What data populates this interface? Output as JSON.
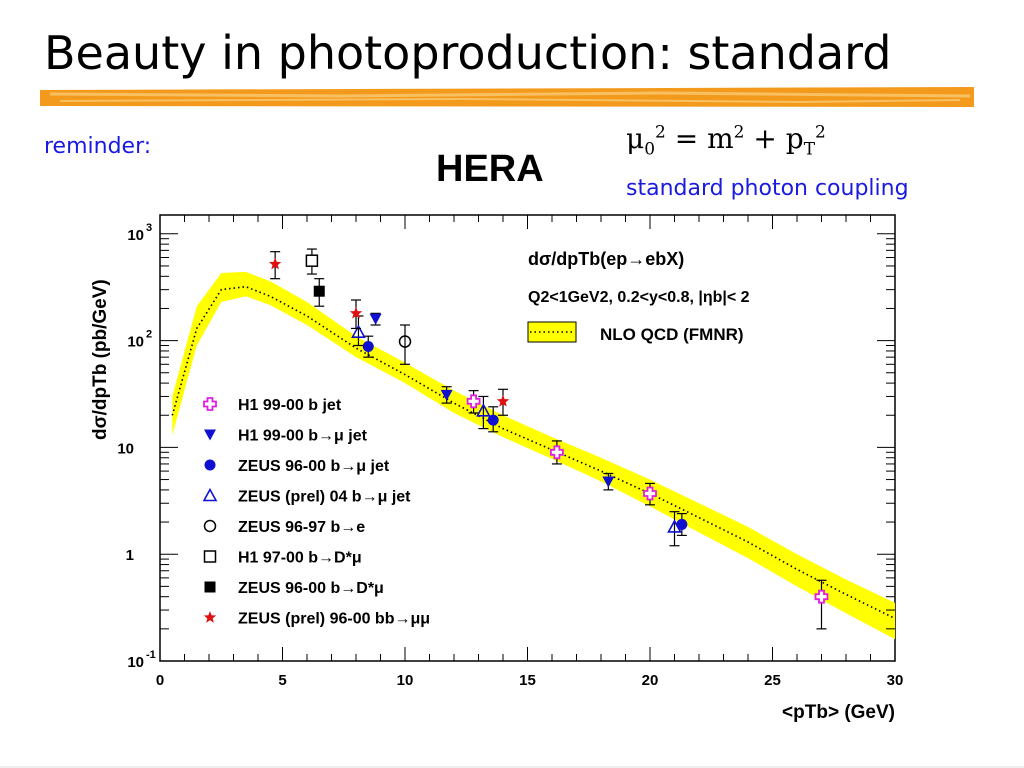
{
  "slide": {
    "title": "Beauty in photoproduction: standard",
    "reminder": "reminder:",
    "hera": "HERA",
    "scale_formula": "μ0² = m² + pT²",
    "coupling": "standard photon coupling"
  },
  "colors": {
    "title_bar": "#f39a1c",
    "note_text": "#1a1ae0",
    "band_fill": "#ffff00",
    "magenta": "#e020e0",
    "blue": "#1010d0",
    "red": "#e01010",
    "black": "#000000"
  },
  "chart_data": {
    "type": "scatter",
    "title": "dσ/dpTb(ep→ebX)",
    "cuts": "Q2<1GeV2,  0.2<y<0.8,  |ηb|< 2",
    "xlabel": "<pTb>  (GeV)",
    "ylabel": "dσ/dpTb  (pb/GeV)",
    "xlim": [
      0,
      30
    ],
    "ylim": [
      0.1,
      1500
    ],
    "y_scale": "log",
    "x_ticks": [
      "0",
      "5",
      "10",
      "15",
      "20",
      "25",
      "30"
    ],
    "y_ticks": [
      {
        "value": 1000,
        "label": "10 3"
      },
      {
        "value": 100,
        "label": "10 2"
      },
      {
        "value": 10,
        "label": "10"
      },
      {
        "value": 1,
        "label": "1"
      },
      {
        "value": 0.1,
        "label": "10 -1"
      }
    ],
    "legend_position": "left-middle",
    "band": {
      "name": "NLO QCD (FMNR)",
      "color": "#ffff00",
      "x": [
        0.5,
        1.5,
        2.5,
        3.5,
        4.5,
        6,
        8,
        10,
        12,
        14,
        16,
        18,
        20,
        22,
        24,
        26,
        28,
        30
      ],
      "central": [
        20,
        130,
        300,
        320,
        260,
        170,
        85,
        48,
        26,
        15,
        9.5,
        6.0,
        3.7,
        2.2,
        1.3,
        0.72,
        0.42,
        0.25
      ],
      "low": [
        13,
        90,
        230,
        260,
        215,
        140,
        70,
        40,
        21,
        12.5,
        7.8,
        4.8,
        2.8,
        1.6,
        0.92,
        0.5,
        0.28,
        0.16
      ],
      "high": [
        30,
        210,
        430,
        440,
        360,
        230,
        110,
        62,
        34,
        20,
        12.5,
        8.0,
        5.0,
        3.0,
        1.8,
        1.0,
        0.58,
        0.35
      ]
    },
    "series": [
      {
        "name": "H1 99-00 b jet",
        "marker": "cross",
        "color": "#e020e0",
        "points": [
          [
            12.8,
            27,
            21,
            34
          ],
          [
            16.2,
            9.0,
            7.0,
            11.5
          ],
          [
            20.0,
            3.7,
            2.9,
            4.6
          ],
          [
            27.0,
            0.4,
            0.2,
            0.57
          ]
        ]
      },
      {
        "name": "H1 99-00 b→μ jet",
        "marker": "triangle-down",
        "color": "#1010d0",
        "points": [
          [
            8.8,
            160,
            140,
            180
          ],
          [
            11.7,
            31,
            26,
            37
          ],
          [
            18.3,
            4.8,
            4.0,
            5.7
          ]
        ]
      },
      {
        "name": "ZEUS 96-00 b→μ jet",
        "marker": "circle",
        "color": "#1010d0",
        "points": [
          [
            8.5,
            88,
            70,
            110
          ],
          [
            13.6,
            18,
            14,
            24
          ],
          [
            21.3,
            1.9,
            1.5,
            2.4
          ]
        ]
      },
      {
        "name": "ZEUS (prel) 04 b→μ jet",
        "marker": "triangle-up-open",
        "color": "#1010d0",
        "points": [
          [
            8.1,
            120,
            90,
            170
          ],
          [
            13.2,
            22,
            15,
            30
          ],
          [
            21.0,
            1.8,
            1.2,
            2.5
          ]
        ]
      },
      {
        "name": "ZEUS 96-97 b→e",
        "marker": "circle-open",
        "color": "#000000",
        "points": [
          [
            10.0,
            98,
            60,
            140
          ]
        ]
      },
      {
        "name": "H1 97-00 b→D*μ",
        "marker": "square-open",
        "color": "#000000",
        "points": [
          [
            6.2,
            560,
            420,
            720
          ]
        ]
      },
      {
        "name": "ZEUS 96-00 b→D*μ",
        "marker": "square",
        "color": "#000000",
        "points": [
          [
            6.5,
            290,
            210,
            380
          ]
        ]
      },
      {
        "name": "ZEUS (prel) 96-00 bb→μμ",
        "marker": "star",
        "color": "#e01010",
        "points": [
          [
            4.7,
            520,
            380,
            680
          ],
          [
            8.0,
            180,
            130,
            240
          ],
          [
            14.0,
            27,
            20,
            35
          ]
        ]
      }
    ]
  }
}
